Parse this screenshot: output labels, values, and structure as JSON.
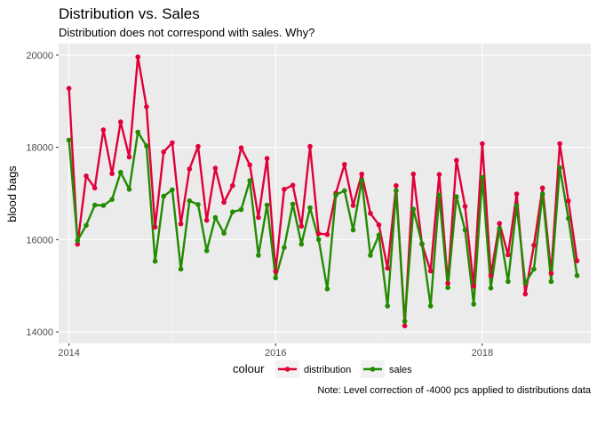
{
  "chart_data": {
    "type": "line",
    "title": "Distribution vs. Sales",
    "subtitle": "Distribution does not correspond with sales. Why?",
    "xlabel": "",
    "ylabel": "blood bags",
    "caption": "Note: Level correction of -4000 pcs applied to distributions data",
    "legend_title": "colour",
    "legend_position": "bottom",
    "grid": true,
    "xlim": [
      2013.9,
      2019.05
    ],
    "ylim": [
      13750,
      20250
    ],
    "x_ticks": [
      2014,
      2016,
      2018
    ],
    "x_tick_labels": [
      "2014",
      "2016",
      "2018"
    ],
    "y_ticks": [
      14000,
      16000,
      18000,
      20000
    ],
    "y_tick_labels": [
      "14000",
      "16000",
      "18000",
      "20000"
    ],
    "x_start": 2014,
    "x_step": 0.08333,
    "series": [
      {
        "name": "distribution",
        "color": "#e0003a",
        "values": [
          19280,
          15900,
          17380,
          17120,
          18380,
          17430,
          18550,
          17790,
          19960,
          18880,
          16270,
          17900,
          18100,
          16340,
          17530,
          18020,
          16420,
          17550,
          16810,
          17170,
          17990,
          17620,
          16480,
          17760,
          15310,
          17090,
          17180,
          16290,
          18020,
          16130,
          16110,
          17010,
          17630,
          16740,
          17420,
          16570,
          16320,
          15380,
          17170,
          14130,
          17420,
          15900,
          15320,
          17410,
          15050,
          17720,
          16720,
          14990,
          18080,
          15220,
          16350,
          15670,
          16990,
          14820,
          15880,
          17120,
          15270,
          18080,
          16840,
          15540
        ]
      },
      {
        "name": "sales",
        "color": "#228b00",
        "values": [
          18160,
          15980,
          16310,
          16750,
          16740,
          16870,
          17460,
          17090,
          18330,
          18030,
          15530,
          16940,
          17080,
          15360,
          16840,
          16760,
          15760,
          16480,
          16140,
          16600,
          16650,
          17280,
          15660,
          16750,
          15170,
          15830,
          16770,
          15900,
          16690,
          16000,
          14930,
          16970,
          17060,
          16210,
          17280,
          15660,
          16100,
          14560,
          17060,
          14230,
          16660,
          15910,
          14560,
          16960,
          14960,
          16930,
          16210,
          14600,
          17350,
          14950,
          16240,
          15090,
          16740,
          15060,
          15360,
          16990,
          15090,
          17560,
          16460,
          15220
        ]
      }
    ]
  }
}
